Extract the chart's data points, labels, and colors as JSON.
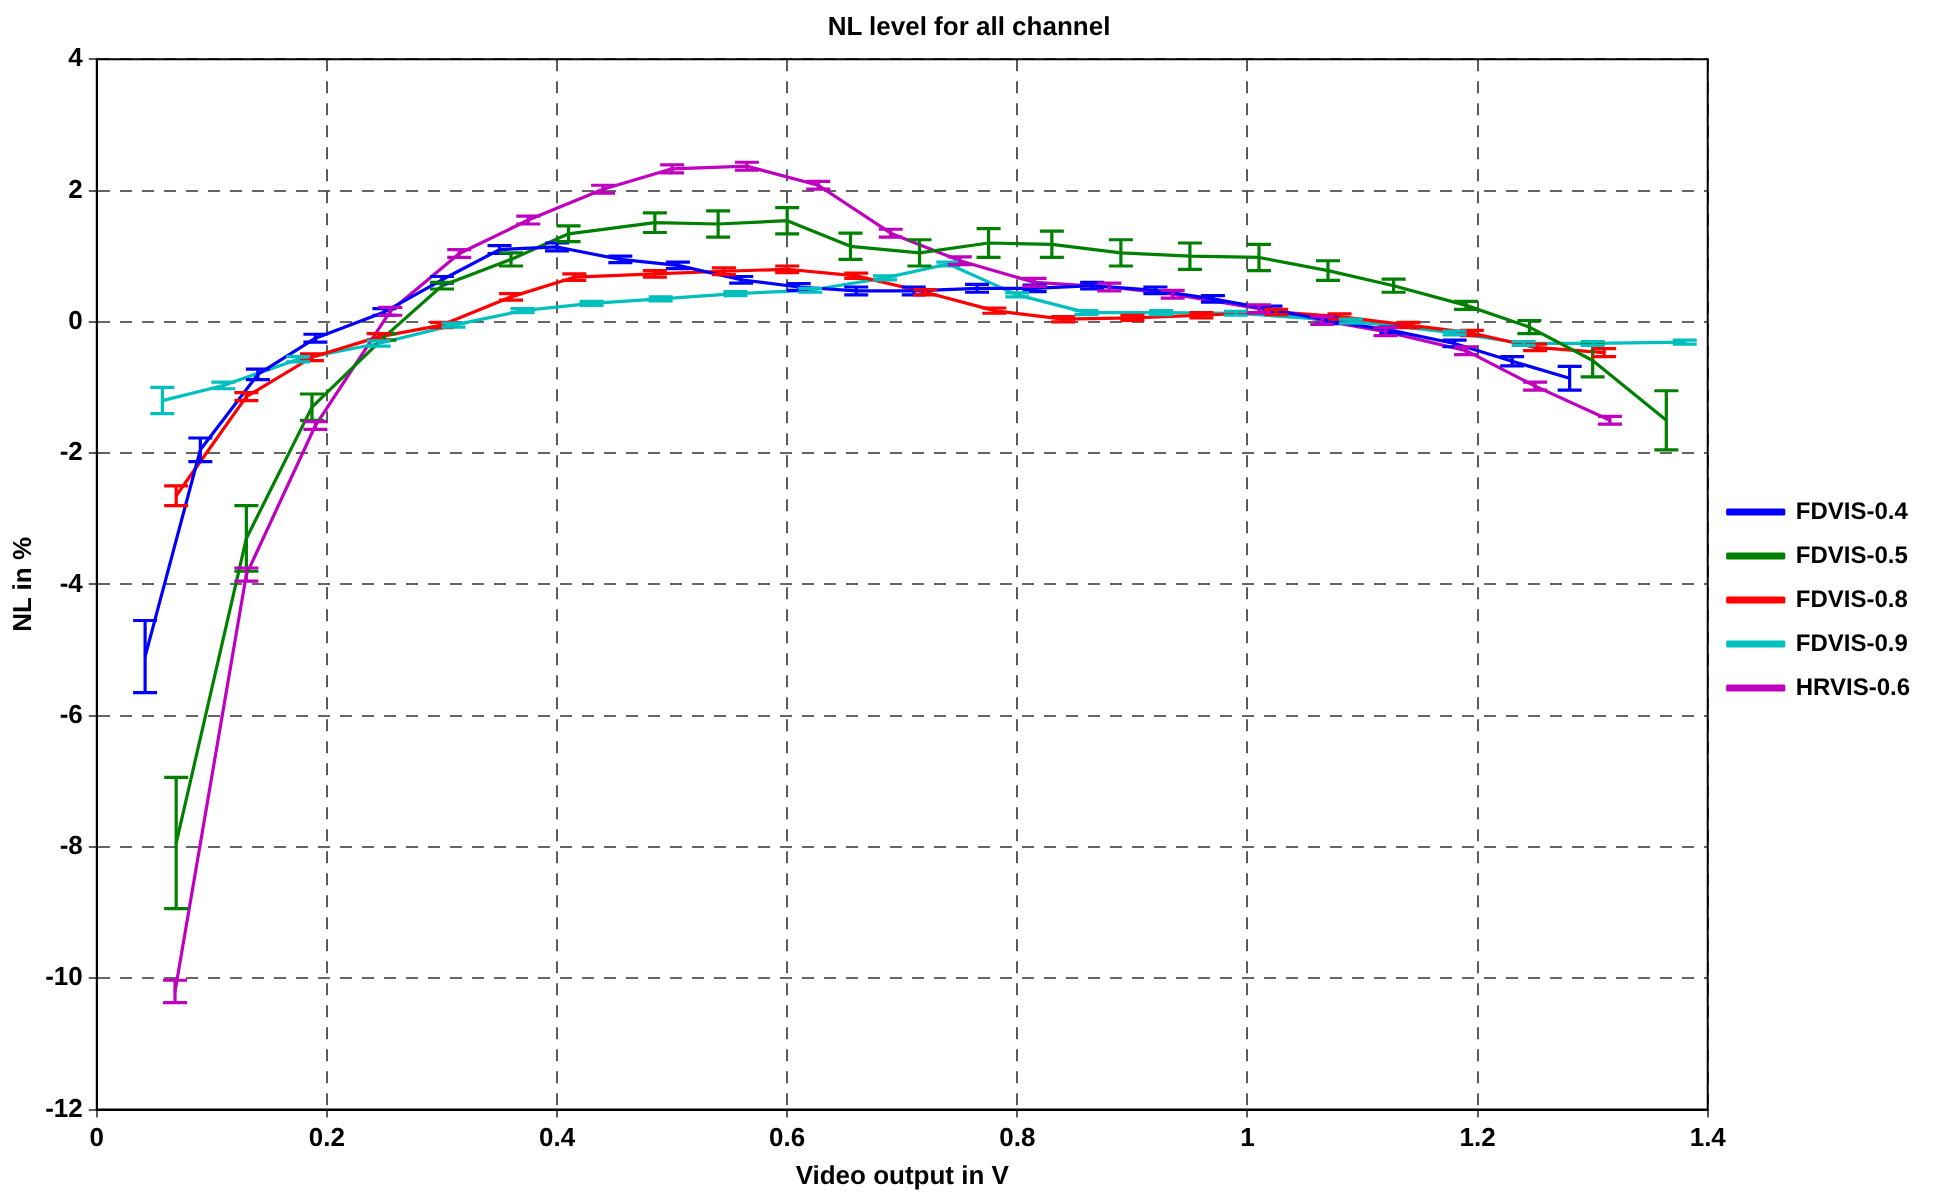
{
  "chart_data": {
    "type": "line",
    "title": "NL level for all channel",
    "xlabel": "Video output in V",
    "ylabel": "NL in %",
    "xlim": [
      0,
      1.4
    ],
    "xticks": [
      0,
      0.2,
      0.4,
      0.6,
      0.8,
      1,
      1.2,
      1.4
    ],
    "ylim": [
      -12,
      4
    ],
    "yticks": [
      -12,
      -10,
      -8,
      -6,
      -4,
      -2,
      0,
      2,
      4
    ],
    "grid": true,
    "legend": "right",
    "line_style": "solid",
    "series": [
      {
        "name": "FDVIS-0.4",
        "color": "#0000ff",
        "x": [
          0.042,
          0.09,
          0.14,
          0.19,
          0.25,
          0.3,
          0.35,
          0.4,
          0.455,
          0.505,
          0.56,
          0.61,
          0.66,
          0.71,
          0.765,
          0.815,
          0.865,
          0.92,
          0.97,
          1.02,
          1.07,
          1.125,
          1.18,
          1.23,
          1.28
        ],
        "values": [
          -5.1,
          -1.95,
          -0.8,
          -0.25,
          0.15,
          0.64,
          1.1,
          1.14,
          0.95,
          0.86,
          0.64,
          0.53,
          0.47,
          0.47,
          0.51,
          0.51,
          0.55,
          0.48,
          0.35,
          0.19,
          0.02,
          -0.13,
          -0.33,
          -0.6,
          -0.86
        ],
        "errors": [
          0.55,
          0.18,
          0.08,
          0.06,
          0.05,
          0.05,
          0.06,
          0.06,
          0.05,
          0.05,
          0.05,
          0.05,
          0.06,
          0.06,
          0.06,
          0.05,
          0.05,
          0.05,
          0.05,
          0.05,
          0.05,
          0.05,
          0.05,
          0.07,
          0.18
        ]
      },
      {
        "name": "FDVIS-0.5",
        "color": "#008000",
        "x": [
          0.069,
          0.13,
          0.187,
          0.25,
          0.3,
          0.36,
          0.41,
          0.485,
          0.54,
          0.6,
          0.655,
          0.715,
          0.775,
          0.83,
          0.89,
          0.95,
          1.01,
          1.07,
          1.127,
          1.19,
          1.245,
          1.3,
          1.364
        ],
        "values": [
          -7.94,
          -3.3,
          -1.3,
          -0.23,
          0.55,
          0.95,
          1.34,
          1.51,
          1.49,
          1.54,
          1.15,
          1.05,
          1.2,
          1.18,
          1.05,
          1.0,
          0.98,
          0.78,
          0.55,
          0.25,
          -0.08,
          -0.59,
          -1.5
        ],
        "errors": [
          1.0,
          0.5,
          0.2,
          0.05,
          0.05,
          0.1,
          0.12,
          0.15,
          0.2,
          0.2,
          0.2,
          0.2,
          0.22,
          0.2,
          0.2,
          0.2,
          0.2,
          0.15,
          0.1,
          0.06,
          0.1,
          0.25,
          0.45
        ]
      },
      {
        "name": "FDVIS-0.8",
        "color": "#ff0000",
        "x": [
          0.069,
          0.13,
          0.187,
          0.245,
          0.3,
          0.36,
          0.415,
          0.485,
          0.545,
          0.6,
          0.66,
          0.72,
          0.78,
          0.84,
          0.9,
          0.96,
          1.025,
          1.08,
          1.14,
          1.195,
          1.25,
          1.31
        ],
        "values": [
          -2.65,
          -1.14,
          -0.54,
          -0.23,
          -0.05,
          0.38,
          0.68,
          0.73,
          0.77,
          0.8,
          0.7,
          0.45,
          0.17,
          0.04,
          0.06,
          0.1,
          0.15,
          0.08,
          -0.05,
          -0.17,
          -0.39,
          -0.47
        ],
        "errors": [
          0.15,
          0.06,
          0.05,
          0.05,
          0.04,
          0.05,
          0.05,
          0.05,
          0.05,
          0.05,
          0.04,
          0.04,
          0.04,
          0.04,
          0.04,
          0.04,
          0.04,
          0.04,
          0.04,
          0.04,
          0.05,
          0.06
        ]
      },
      {
        "name": "FDVIS-0.9",
        "color": "#00bfbf",
        "x": [
          0.057,
          0.11,
          0.175,
          0.245,
          0.31,
          0.37,
          0.43,
          0.49,
          0.555,
          0.62,
          0.685,
          0.74,
          0.8,
          0.86,
          0.925,
          0.99,
          1.09,
          1.18,
          1.24,
          1.3,
          1.38
        ],
        "values": [
          -1.2,
          -0.97,
          -0.57,
          -0.33,
          -0.05,
          0.17,
          0.28,
          0.35,
          0.43,
          0.48,
          0.67,
          0.88,
          0.41,
          0.14,
          0.14,
          0.13,
          0.01,
          -0.17,
          -0.33,
          -0.33,
          -0.31
        ],
        "errors": [
          0.2,
          0.05,
          0.04,
          0.04,
          0.03,
          0.03,
          0.03,
          0.03,
          0.03,
          0.03,
          0.03,
          0.03,
          0.03,
          0.03,
          0.03,
          0.03,
          0.03,
          0.03,
          0.03,
          0.03,
          0.03
        ]
      },
      {
        "name": "HRVIS-0.6",
        "color": "#bf00bf",
        "x": [
          0.068,
          0.13,
          0.19,
          0.255,
          0.315,
          0.375,
          0.44,
          0.5,
          0.565,
          0.627,
          0.69,
          0.75,
          0.815,
          0.88,
          0.935,
          1.01,
          1.065,
          1.12,
          1.19,
          1.25,
          1.315
        ],
        "values": [
          -10.2,
          -3.85,
          -1.58,
          0.16,
          1.04,
          1.55,
          2.02,
          2.33,
          2.37,
          2.08,
          1.35,
          0.93,
          0.6,
          0.53,
          0.42,
          0.2,
          0.02,
          -0.15,
          -0.44,
          -0.98,
          -1.5
        ],
        "errors": [
          0.17,
          0.1,
          0.06,
          0.06,
          0.06,
          0.06,
          0.06,
          0.06,
          0.06,
          0.06,
          0.06,
          0.06,
          0.06,
          0.06,
          0.06,
          0.06,
          0.06,
          0.06,
          0.06,
          0.06,
          0.06
        ]
      }
    ]
  }
}
